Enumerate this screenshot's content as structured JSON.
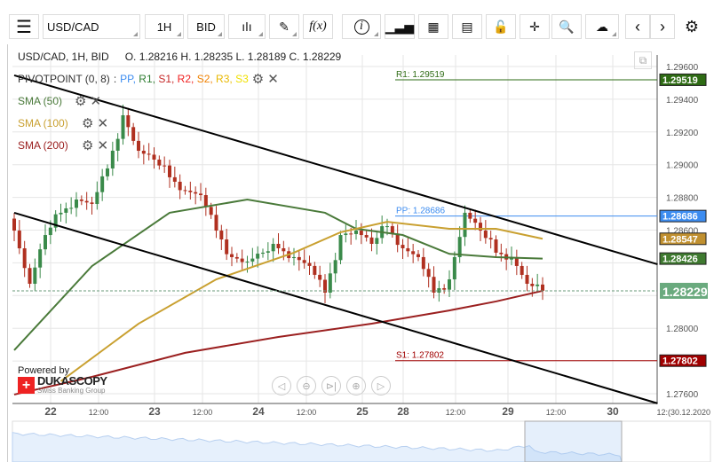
{
  "toolbar": {
    "menu_icon": "hamburger-icon",
    "symbol": "USD/CAD",
    "period": "1H",
    "side": "BID",
    "icons": [
      "candlestick-icon",
      "pencil-icon",
      "function-icon",
      "info-icon",
      "bar-chart-icon",
      "calendar-icon",
      "report-icon",
      "lock-icon",
      "crosshair-icon",
      "zoom-search-icon",
      "upload-cloud-icon",
      "chevron-left-icon",
      "chevron-right-icon",
      "gear-icon"
    ],
    "fx_label": "f(x)",
    "info_label": "i"
  },
  "header": {
    "title": "USD/CAD, 1H, BID",
    "ohlc": "O. 1.28216 H. 1.28235 L. 1.28189 C. 1.28229"
  },
  "indicators": {
    "pivot": {
      "label": "PIVOTPOINT (0, 8)",
      "sep": ":",
      "items": [
        {
          "t": "PP",
          "c": "#3c8cf0"
        },
        {
          "t": "R1",
          "c": "#2e7d32"
        },
        {
          "t": "S1",
          "c": "#c62828"
        },
        {
          "t": "R2",
          "c": "#f02020"
        },
        {
          "t": "S2",
          "c": "#f08000"
        },
        {
          "t": "R3",
          "c": "#e8b800"
        },
        {
          "t": "S3",
          "c": "#f0e000"
        }
      ]
    },
    "sma": [
      {
        "label": "SMA (50)",
        "color": "#4a7a3a"
      },
      {
        "label": "SMA (100)",
        "color": "#c9a030"
      },
      {
        "label": "SMA (200)",
        "color": "#9b2020"
      }
    ]
  },
  "chart_data": {
    "type": "candlestick",
    "symbol": "USD/CAD",
    "timeframe": "1H",
    "ylim": [
      1.2756,
      1.2968
    ],
    "y_ticks": [
      "1.29600",
      "1.29400",
      "1.29200",
      "1.29000",
      "1.28800",
      "1.28600",
      "1.28000",
      "1.27600"
    ],
    "x_ticks": [
      "22",
      "12:00",
      "23",
      "12:00",
      "24",
      "12:00",
      "25",
      "28",
      "12:00",
      "29",
      "12:00",
      "30",
      "12:(30.12.2020"
    ],
    "closes": [
      1.28597,
      1.28272,
      1.2857,
      1.28706,
      1.28787,
      1.2876,
      1.28977,
      1.29302,
      1.29085,
      1.29031,
      1.28923,
      1.28841,
      1.28814,
      1.28597,
      1.28435,
      1.28408,
      1.28462,
      1.28489,
      1.28435,
      1.28381,
      1.28218,
      1.2857,
      1.28597,
      1.28516,
      1.28624,
      1.28489,
      1.28435,
      1.28218,
      1.28299,
      1.28706,
      1.28597,
      1.28462,
      1.28435,
      1.28272,
      1.28229
    ],
    "sma50": [
      [
        0,
        1.27866
      ],
      [
        5,
        1.2838
      ],
      [
        10,
        1.28706
      ],
      [
        15,
        1.28787
      ],
      [
        20,
        1.28706
      ],
      [
        22,
        1.28608
      ],
      [
        25,
        1.2857
      ],
      [
        28,
        1.28455
      ],
      [
        31,
        1.28435
      ],
      [
        34,
        1.28426
      ]
    ],
    "sma100": [
      [
        3,
        1.27676
      ],
      [
        8,
        1.28028
      ],
      [
        13,
        1.28299
      ],
      [
        18,
        1.28462
      ],
      [
        21,
        1.28587
      ],
      [
        24,
        1.28651
      ],
      [
        28,
        1.28608
      ],
      [
        31,
        1.28608
      ],
      [
        34,
        1.28547
      ]
    ],
    "sma200": [
      [
        0,
        1.27595
      ],
      [
        5,
        1.27703
      ],
      [
        11,
        1.2785
      ],
      [
        17,
        1.27947
      ],
      [
        23,
        1.28028
      ],
      [
        28,
        1.28109
      ],
      [
        31,
        1.28164
      ],
      [
        34,
        1.28229
      ]
    ],
    "trendlines": [
      [
        [
          0,
          1.29546
        ],
        [
          41.4,
          1.28391
        ]
      ],
      [
        [
          0,
          1.28706
        ],
        [
          41.4,
          1.27541
        ]
      ]
    ],
    "pivots": [
      {
        "name": "R1",
        "label": "R1: 1.29519",
        "value": 1.29519,
        "tag": "1.29519",
        "color": "#2e6b14"
      },
      {
        "name": "PP",
        "label": "PP: 1.28686",
        "value": 1.28686,
        "tag": "1.28686",
        "color": "#3c8cf0"
      },
      {
        "name": "S1",
        "label": "S1: 1.27802",
        "value": 1.27802,
        "tag": "1.27802",
        "color": "#a00000"
      }
    ],
    "price_tags": [
      {
        "tag": "1.28547",
        "value": 1.28547,
        "color": "#c09030"
      },
      {
        "tag": "1.28426",
        "value": 1.28426,
        "color": "#3f7a30"
      }
    ],
    "last": {
      "tag": "1.28229",
      "value": 1.28229,
      "color": "#6aaa7e"
    }
  },
  "branding": {
    "powered": "Powered by",
    "name": "DUKASCOPY",
    "sub": "Swiss Banking Group"
  },
  "nav_icons": [
    "pan-left-icon",
    "zoom-out-icon",
    "reset-end-icon",
    "zoom-in-icon",
    "pan-right-icon"
  ]
}
